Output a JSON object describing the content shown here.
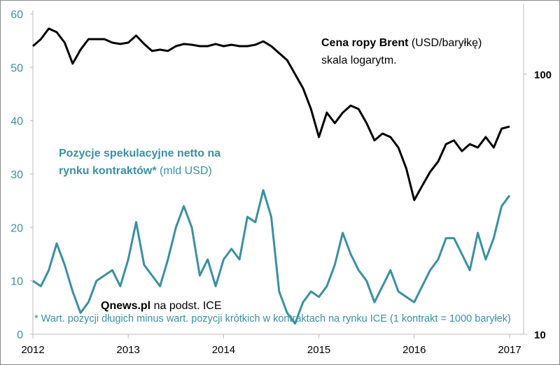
{
  "chart_data": {
    "type": "line",
    "x_ticks": [
      "2012",
      "2013",
      "2014",
      "2015",
      "2016",
      "2017"
    ],
    "left_axis": {
      "ticks": [
        "0",
        "10",
        "20",
        "30",
        "40",
        "50",
        "60"
      ],
      "ylim": [
        0,
        60
      ]
    },
    "right_axis": {
      "ticks": [
        "10",
        "100"
      ],
      "scale": "log",
      "ylim": [
        10,
        132
      ]
    },
    "x_start": 2012,
    "step_months": 1,
    "series": [
      {
        "name": "Cena ropy Brent",
        "unit": "USD/baryłkę",
        "axis": "right",
        "color": "#000000",
        "values": [
          128.1,
          136.3,
          149.6,
          145,
          132.1,
          109.7,
          124.2,
          136.3,
          136.3,
          136.3,
          132.1,
          130.6,
          132.1,
          140.6,
          130.6,
          122.7,
          124.2,
          122.7,
          128.1,
          130.6,
          129.7,
          128.1,
          128.1,
          130.6,
          128.1,
          129.7,
          128.1,
          128.1,
          129.7,
          133.7,
          128.1,
          120.4,
          113.2,
          100,
          88.3,
          73.4,
          57.3,
          71.1,
          64.8,
          71.1,
          75.7,
          73.4,
          64.8,
          55.6,
          59.1,
          57.3,
          52.2,
          43.4,
          32.8,
          37.2,
          42.1,
          46.1,
          53.8,
          55.6,
          50.6,
          53.8,
          52.2,
          57.3,
          52.2,
          61.7,
          62.9
        ]
      },
      {
        "name": "Pozycje spekulacyjne netto",
        "unit": "mld USD",
        "axis": "left",
        "color": "#3a90a4",
        "values": [
          10,
          9,
          12,
          17,
          13,
          8,
          4,
          6,
          10,
          11,
          12,
          9,
          14,
          21,
          13,
          11,
          9,
          14,
          20,
          24,
          20,
          11,
          14,
          9,
          14,
          16,
          14,
          22,
          21,
          27,
          22,
          8,
          4,
          2,
          6,
          8,
          7,
          9,
          13,
          19,
          15,
          12,
          10,
          6,
          9,
          12,
          8,
          7,
          6,
          9,
          12,
          14,
          18,
          18,
          15,
          12,
          19,
          14,
          18,
          24,
          26
        ]
      }
    ]
  },
  "annotations": {
    "brent_title": "Cena ropy Brent",
    "brent_unit": "(USD/baryłkę)",
    "brent_scale": "skala logarytm.",
    "pos_title_1": "Pozycje spekulacyjne netto na",
    "pos_title_2": "rynku kontraktów*",
    "pos_unit": "(mld USD)",
    "source_bold": "Qnews.pl",
    "source_rest": "na podst. ICE",
    "footnote": "* Wart. pozycji długich minus wart. pozycji krótkich w kontraktach na rynku ICE (1 kontrakt = 1000 baryłek)"
  }
}
